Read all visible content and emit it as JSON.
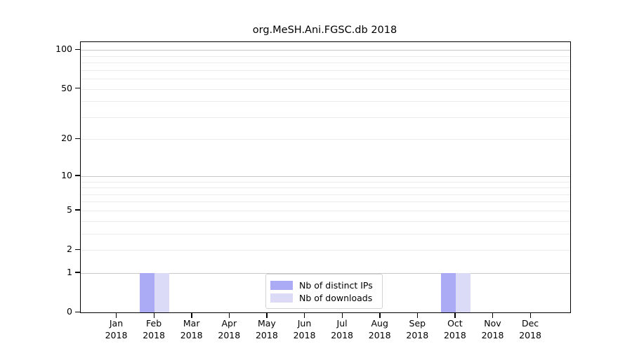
{
  "chart_data": {
    "type": "bar",
    "title": "org.MeSH.Ani.FGSC.db 2018",
    "categories": [
      "Jan",
      "Feb",
      "Mar",
      "Apr",
      "May",
      "Jun",
      "Jul",
      "Aug",
      "Sep",
      "Oct",
      "Nov",
      "Dec"
    ],
    "xtick_line2": "2018",
    "series": [
      {
        "name": "Nb of distinct IPs",
        "color": "#aaaaf5",
        "values": [
          0,
          1,
          0,
          0,
          0,
          0,
          0,
          0,
          0,
          1,
          0,
          0
        ]
      },
      {
        "name": "Nb of downloads",
        "color": "#dbdbf8",
        "values": [
          0,
          1,
          0,
          0,
          0,
          0,
          0,
          0,
          0,
          1,
          0,
          0
        ]
      }
    ],
    "yticks": [
      0,
      1,
      2,
      5,
      10,
      20,
      50,
      100
    ],
    "ylim": [
      0,
      115
    ],
    "scale": "log1p",
    "grid": "horizontal, minor lines at 2-9 and 20-90, decade lines at 1/10/100",
    "legend_position": "lower center",
    "colors": {
      "grid_minor": "#ececec",
      "grid_decade": "#c8c8c8",
      "axis": "#000000",
      "background": "#ffffff"
    }
  }
}
